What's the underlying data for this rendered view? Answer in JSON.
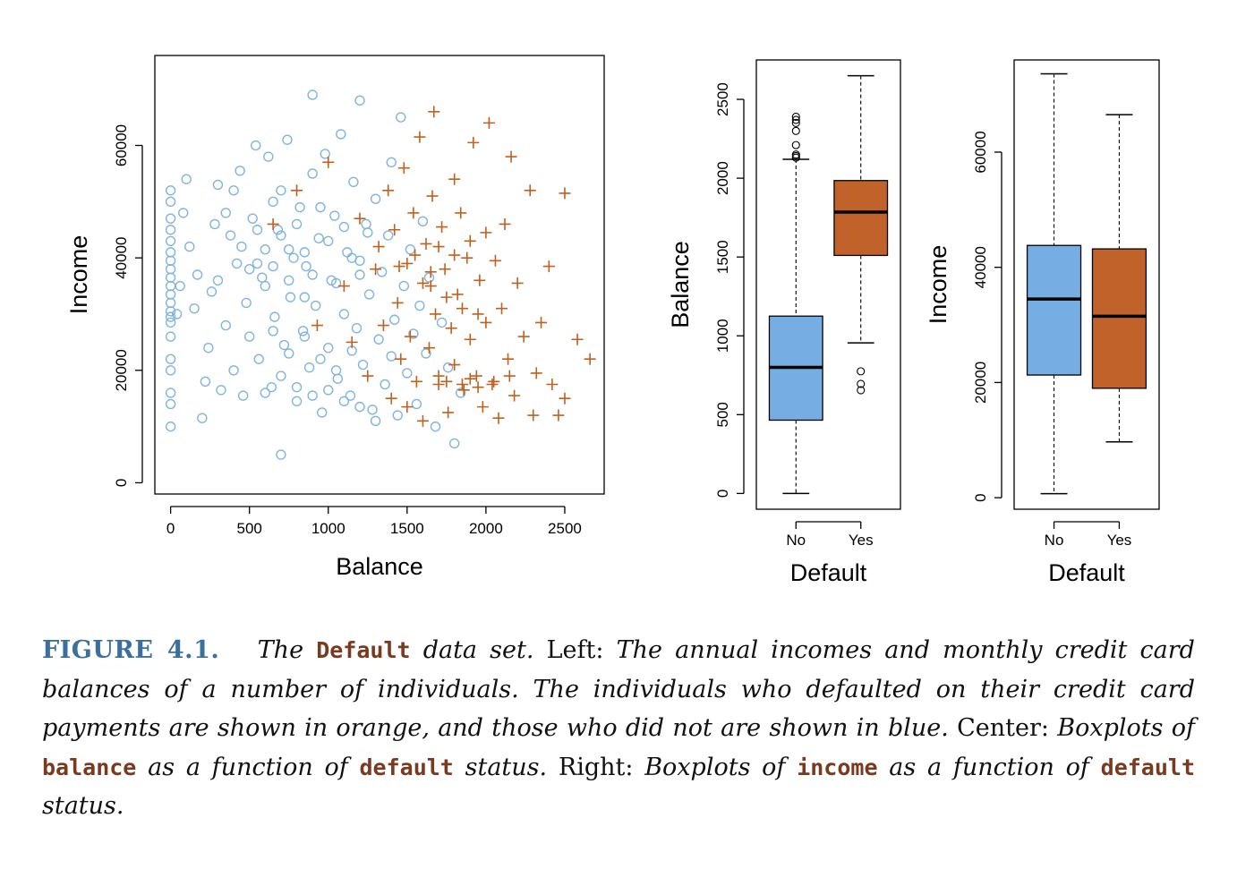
{
  "colors": {
    "no_default": "#80b4e0",
    "default": "#c0601e",
    "box_no": "#76aee3",
    "box_yes": "#c0622a",
    "figure_number": "#3a6fa0",
    "code": "#7a3a1f"
  },
  "chart_data": [
    {
      "type": "scatter",
      "xlabel": "Balance",
      "ylabel": "Income",
      "xlim": [
        -100,
        2750
      ],
      "ylim": [
        -2000,
        76000
      ],
      "xticks": [
        "0",
        "500",
        "1000",
        "1500",
        "2000",
        "2500"
      ],
      "yticks": [
        "0",
        "20000",
        "40000",
        "60000"
      ],
      "grid": false,
      "series": [
        {
          "marker": "circle",
          "color": "#80b4e0",
          "points": [
            [
              0,
              10000
            ],
            [
              0,
              14000
            ],
            [
              0,
              16000
            ],
            [
              0,
              20000
            ],
            [
              0,
              22000
            ],
            [
              0,
              26000
            ],
            [
              0,
              28500
            ],
            [
              0,
              29500
            ],
            [
              0,
              30500
            ],
            [
              0,
              32000
            ],
            [
              0,
              33500
            ],
            [
              0,
              35000
            ],
            [
              0,
              36500
            ],
            [
              0,
              38000
            ],
            [
              0,
              39500
            ],
            [
              0,
              41000
            ],
            [
              0,
              43000
            ],
            [
              0,
              45000
            ],
            [
              0,
              47000
            ],
            [
              0,
              50000
            ],
            [
              0,
              52000
            ],
            [
              40,
              30000
            ],
            [
              60,
              35000
            ],
            [
              80,
              48000
            ],
            [
              100,
              54000
            ],
            [
              120,
              42000
            ],
            [
              150,
              31000
            ],
            [
              170,
              37000
            ],
            [
              200,
              11500
            ],
            [
              220,
              18000
            ],
            [
              240,
              24000
            ],
            [
              260,
              34000
            ],
            [
              280,
              46000
            ],
            [
              300,
              53000
            ],
            [
              320,
              16500
            ],
            [
              350,
              28000
            ],
            [
              380,
              44000
            ],
            [
              400,
              20000
            ],
            [
              420,
              39000
            ],
            [
              440,
              55500
            ],
            [
              460,
              15500
            ],
            [
              480,
              32000
            ],
            [
              500,
              26000
            ],
            [
              520,
              47000
            ],
            [
              540,
              60000
            ],
            [
              560,
              22000
            ],
            [
              580,
              36500
            ],
            [
              600,
              41500
            ],
            [
              620,
              58000
            ],
            [
              640,
              17000
            ],
            [
              660,
              29500
            ],
            [
              680,
              45000
            ],
            [
              700,
              5000
            ],
            [
              700,
              52000
            ],
            [
              720,
              24500
            ],
            [
              740,
              61000
            ],
            [
              760,
              33000
            ],
            [
              780,
              40000
            ],
            [
              800,
              14500
            ],
            [
              820,
              49000
            ],
            [
              840,
              27000
            ],
            [
              860,
              38500
            ],
            [
              880,
              20500
            ],
            [
              900,
              69000
            ],
            [
              900,
              55000
            ],
            [
              920,
              31500
            ],
            [
              940,
              43500
            ],
            [
              960,
              12500
            ],
            [
              980,
              58500
            ],
            [
              1000,
              24000
            ],
            [
              1020,
              36000
            ],
            [
              1040,
              47500
            ],
            [
              1060,
              18500
            ],
            [
              1080,
              62000
            ],
            [
              1100,
              30000
            ],
            [
              1120,
              41000
            ],
            [
              1140,
              15500
            ],
            [
              1160,
              53500
            ],
            [
              1180,
              27500
            ],
            [
              1200,
              68000
            ],
            [
              1200,
              39500
            ],
            [
              1220,
              21000
            ],
            [
              1240,
              46000
            ],
            [
              1260,
              33500
            ],
            [
              1280,
              13000
            ],
            [
              1300,
              50500
            ],
            [
              1320,
              25500
            ],
            [
              1340,
              37500
            ],
            [
              1360,
              17500
            ],
            [
              1380,
              44000
            ],
            [
              1400,
              22500
            ],
            [
              1400,
              57000
            ],
            [
              1420,
              29000
            ],
            [
              1440,
              12000
            ],
            [
              1460,
              65000
            ],
            [
              1480,
              35000
            ],
            [
              1500,
              19500
            ],
            [
              1520,
              41500
            ],
            [
              1540,
              26500
            ],
            [
              1560,
              14000
            ],
            [
              1580,
              31500
            ],
            [
              1600,
              46500
            ],
            [
              1620,
              23000
            ],
            [
              1640,
              36500
            ],
            [
              1680,
              10000
            ],
            [
              1720,
              28500
            ],
            [
              1760,
              20500
            ],
            [
              1800,
              7000
            ],
            [
              1840,
              16000
            ],
            [
              300,
              36000
            ],
            [
              350,
              48000
            ],
            [
              400,
              52000
            ],
            [
              450,
              42000
            ],
            [
              500,
              38000
            ],
            [
              550,
              45000
            ],
            [
              600,
              35000
            ],
            [
              650,
              50000
            ],
            [
              700,
              44000
            ],
            [
              750,
              36000
            ],
            [
              800,
              46000
            ],
            [
              850,
              41000
            ],
            [
              900,
              37000
            ],
            [
              950,
              49000
            ],
            [
              1000,
              43000
            ],
            [
              1050,
              35500
            ],
            [
              1100,
              45500
            ],
            [
              1150,
              40000
            ],
            [
              1200,
              37000
            ],
            [
              1250,
              44500
            ],
            [
              600,
              16000
            ],
            [
              700,
              19000
            ],
            [
              800,
              17000
            ],
            [
              900,
              15500
            ],
            [
              1000,
              16500
            ],
            [
              1100,
              14500
            ],
            [
              1200,
              13500
            ],
            [
              1300,
              11000
            ],
            [
              650,
              27000
            ],
            [
              750,
              23000
            ],
            [
              850,
              26000
            ],
            [
              950,
              22000
            ],
            [
              1050,
              20000
            ],
            [
              1150,
              23500
            ],
            [
              550,
              39000
            ],
            [
              650,
              38500
            ],
            [
              750,
              41500
            ],
            [
              850,
              33000
            ]
          ]
        },
        {
          "marker": "plus",
          "color": "#c0601e",
          "points": [
            [
              650,
              46000
            ],
            [
              800,
              52000
            ],
            [
              930,
              28000
            ],
            [
              1000,
              57000
            ],
            [
              1100,
              35000
            ],
            [
              1150,
              25000
            ],
            [
              1200,
              47000
            ],
            [
              1250,
              19000
            ],
            [
              1300,
              38000
            ],
            [
              1320,
              42000
            ],
            [
              1350,
              28000
            ],
            [
              1380,
              52000
            ],
            [
              1400,
              15000
            ],
            [
              1420,
              45000
            ],
            [
              1440,
              32000
            ],
            [
              1460,
              22000
            ],
            [
              1480,
              56000
            ],
            [
              1500,
              39000
            ],
            [
              1500,
              13500
            ],
            [
              1520,
              26000
            ],
            [
              1540,
              48000
            ],
            [
              1560,
              18000
            ],
            [
              1580,
              61500
            ],
            [
              1600,
              35500
            ],
            [
              1600,
              11000
            ],
            [
              1620,
              42500
            ],
            [
              1640,
              24000
            ],
            [
              1660,
              51000
            ],
            [
              1670,
              66000
            ],
            [
              1680,
              30000
            ],
            [
              1700,
              17500
            ],
            [
              1720,
              45500
            ],
            [
              1740,
              38000
            ],
            [
              1760,
              12500
            ],
            [
              1780,
              27500
            ],
            [
              1800,
              54000
            ],
            [
              1800,
              21000
            ],
            [
              1820,
              33500
            ],
            [
              1840,
              48000
            ],
            [
              1860,
              16500
            ],
            [
              1880,
              40000
            ],
            [
              1900,
              25500
            ],
            [
              1920,
              60500
            ],
            [
              1940,
              19000
            ],
            [
              1960,
              36000
            ],
            [
              1980,
              13500
            ],
            [
              2000,
              44500
            ],
            [
              2000,
              28500
            ],
            [
              2020,
              64000
            ],
            [
              2040,
              17500
            ],
            [
              2060,
              39500
            ],
            [
              2080,
              11500
            ],
            [
              2100,
              31000
            ],
            [
              2120,
              46000
            ],
            [
              2140,
              22000
            ],
            [
              2160,
              58000
            ],
            [
              2180,
              15500
            ],
            [
              2200,
              35500
            ],
            [
              2240,
              26000
            ],
            [
              2280,
              52000
            ],
            [
              2300,
              12000
            ],
            [
              2320,
              19500
            ],
            [
              2350,
              28500
            ],
            [
              2400,
              38500
            ],
            [
              2420,
              17500
            ],
            [
              2460,
              12000
            ],
            [
              2500,
              51500
            ],
            [
              2500,
              15000
            ],
            [
              2580,
              25500
            ],
            [
              2660,
              22000
            ],
            [
              1700,
              19000
            ],
            [
              1750,
              18000
            ],
            [
              1850,
              17500
            ],
            [
              1900,
              18500
            ],
            [
              1950,
              17000
            ],
            [
              2050,
              18000
            ],
            [
              2150,
              19000
            ],
            [
              1650,
              35000
            ],
            [
              1750,
              33000
            ],
            [
              1850,
              31000
            ],
            [
              1950,
              30000
            ],
            [
              1700,
              42000
            ],
            [
              1800,
              40500
            ],
            [
              1900,
              43000
            ],
            [
              1450,
              38500
            ],
            [
              1550,
              40500
            ],
            [
              1650,
              37500
            ]
          ]
        }
      ]
    },
    {
      "type": "box",
      "xlabel": "Default",
      "ylabel": "Balance",
      "ylim": [
        -100,
        2750
      ],
      "yticks": [
        "0",
        "500",
        "1000",
        "1500",
        "2000",
        "2500"
      ],
      "categories": [
        "No",
        "Yes"
      ],
      "boxes": [
        {
          "low": 0,
          "q1": 465,
          "median": 800,
          "q3": 1125,
          "high": 2120,
          "outliers": [
            2130,
            2140,
            2150,
            2210,
            2300,
            2350,
            2370,
            2390
          ],
          "color": "#76aee3"
        },
        {
          "low": 955,
          "q1": 1510,
          "median": 1785,
          "q3": 1985,
          "high": 2650,
          "outliers": [
            655,
            695,
            775
          ],
          "color": "#c0622a"
        }
      ]
    },
    {
      "type": "box",
      "xlabel": "Default",
      "ylabel": "Income",
      "ylim": [
        -2000,
        76000
      ],
      "yticks": [
        "0",
        "20000",
        "40000",
        "60000"
      ],
      "categories": [
        "No",
        "Yes"
      ],
      "boxes": [
        {
          "low": 700,
          "q1": 21300,
          "median": 34500,
          "q3": 43800,
          "high": 73600,
          "outliers": [],
          "color": "#76aee3"
        },
        {
          "low": 9700,
          "q1": 19000,
          "median": 31500,
          "q3": 43200,
          "high": 66500,
          "outliers": [],
          "color": "#c0622a"
        }
      ]
    }
  ],
  "caption": {
    "figure_number": "FIGURE 4.1.",
    "t1": "The",
    "code1": "Default",
    "t2": "data set.",
    "t3": "Left:",
    "t4": "The annual incomes and monthly credit card balances of a number of individuals. The individuals who defaulted on their credit card payments are shown in orange, and those who did not are shown in blue.",
    "t5": "Center:",
    "t6": "Boxplots of",
    "code2": "balance",
    "t7": "as a function of",
    "code3": "default",
    "t8": "status.",
    "t9": "Right:",
    "t10": "Boxplots of",
    "code4": "income",
    "t11": "as a function of",
    "code5": "default",
    "t12": "status."
  }
}
